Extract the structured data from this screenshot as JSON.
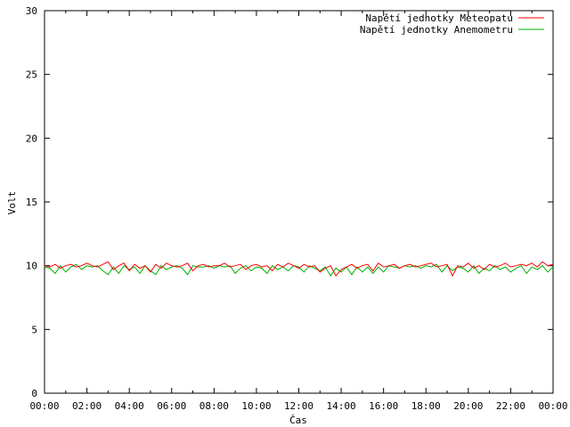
{
  "chart_data": {
    "type": "line",
    "xlabel": "Čas",
    "ylabel": "Volt",
    "ylim": [
      0,
      30
    ],
    "xlim_hours": [
      0,
      24
    ],
    "x_ticks": [
      "00:00",
      "02:00",
      "04:00",
      "06:00",
      "08:00",
      "10:00",
      "12:00",
      "14:00",
      "16:00",
      "18:00",
      "20:00",
      "22:00",
      "00:00"
    ],
    "y_ticks": [
      0,
      5,
      10,
      15,
      20,
      25,
      30
    ],
    "grid": false,
    "legend_position": "top-right",
    "series": [
      {
        "name": "Napětí jednotky Meteopatu",
        "color": "#ff0000",
        "x_hours": [
          0.0,
          0.25,
          0.5,
          0.75,
          1.0,
          1.25,
          1.5,
          1.75,
          2.0,
          2.25,
          2.5,
          2.75,
          3.0,
          3.25,
          3.5,
          3.75,
          4.0,
          4.25,
          4.5,
          4.75,
          5.0,
          5.25,
          5.5,
          5.75,
          6.0,
          6.25,
          6.5,
          6.75,
          7.0,
          7.25,
          7.5,
          7.75,
          8.0,
          8.25,
          8.5,
          8.75,
          9.0,
          9.25,
          9.5,
          9.75,
          10.0,
          10.25,
          10.5,
          10.75,
          11.0,
          11.25,
          11.5,
          11.75,
          12.0,
          12.25,
          12.5,
          12.75,
          13.0,
          13.25,
          13.5,
          13.75,
          14.0,
          14.25,
          14.5,
          14.75,
          15.0,
          15.25,
          15.5,
          15.75,
          16.0,
          16.25,
          16.5,
          16.75,
          17.0,
          17.25,
          17.5,
          17.75,
          18.0,
          18.25,
          18.5,
          18.75,
          19.0,
          19.25,
          19.5,
          19.75,
          20.0,
          20.25,
          20.5,
          20.75,
          21.0,
          21.25,
          21.5,
          21.75,
          22.0,
          22.25,
          22.5,
          22.75,
          23.0,
          23.25,
          23.5,
          23.75,
          24.0
        ],
        "values": [
          10.0,
          9.9,
          10.1,
          9.8,
          10.0,
          10.1,
          9.9,
          10.0,
          10.2,
          10.0,
          9.9,
          10.1,
          10.3,
          9.7,
          10.0,
          10.2,
          9.6,
          10.1,
          9.8,
          10.0,
          9.5,
          10.1,
          9.8,
          10.2,
          10.0,
          9.9,
          10.0,
          10.2,
          9.6,
          10.0,
          10.1,
          9.9,
          10.0,
          10.0,
          10.2,
          9.9,
          10.0,
          10.1,
          9.7,
          10.0,
          10.1,
          9.9,
          10.0,
          9.6,
          10.1,
          9.9,
          10.2,
          10.0,
          9.8,
          10.1,
          9.9,
          10.0,
          9.5,
          9.8,
          10.0,
          9.2,
          9.7,
          9.9,
          10.1,
          9.8,
          10.0,
          10.1,
          9.6,
          10.2,
          9.9,
          10.0,
          10.1,
          9.8,
          10.0,
          10.1,
          9.9,
          10.0,
          10.1,
          10.2,
          9.9,
          10.0,
          10.1,
          9.2,
          10.0,
          9.9,
          10.2,
          9.8,
          10.0,
          9.7,
          10.1,
          9.9,
          10.0,
          10.2,
          9.9,
          10.0,
          10.1,
          10.0,
          10.2,
          9.9,
          10.3,
          10.0,
          10.1
        ]
      },
      {
        "name": "Napětí jednotky Anemometru",
        "color": "#00b000",
        "x_hours": [
          0.0,
          0.25,
          0.5,
          0.75,
          1.0,
          1.25,
          1.5,
          1.75,
          2.0,
          2.25,
          2.5,
          2.75,
          3.0,
          3.25,
          3.5,
          3.75,
          4.0,
          4.25,
          4.5,
          4.75,
          5.0,
          5.25,
          5.5,
          5.75,
          6.0,
          6.25,
          6.5,
          6.75,
          7.0,
          7.25,
          7.5,
          7.75,
          8.0,
          8.25,
          8.5,
          8.75,
          9.0,
          9.25,
          9.5,
          9.75,
          10.0,
          10.25,
          10.5,
          10.75,
          11.0,
          11.25,
          11.5,
          11.75,
          12.0,
          12.25,
          12.5,
          12.75,
          13.0,
          13.25,
          13.5,
          13.75,
          14.0,
          14.25,
          14.5,
          14.75,
          15.0,
          15.25,
          15.5,
          15.75,
          16.0,
          16.25,
          16.5,
          16.75,
          17.0,
          17.25,
          17.5,
          17.75,
          18.0,
          18.25,
          18.5,
          18.75,
          19.0,
          19.25,
          19.5,
          19.75,
          20.0,
          20.25,
          20.5,
          20.75,
          21.0,
          21.25,
          21.5,
          21.75,
          22.0,
          22.25,
          22.5,
          22.75,
          23.0,
          23.25,
          23.5,
          23.75,
          24.0
        ],
        "values": [
          9.9,
          9.8,
          9.4,
          10.0,
          9.5,
          9.9,
          10.1,
          9.7,
          10.0,
          9.9,
          10.0,
          9.6,
          9.3,
          9.9,
          9.4,
          10.0,
          9.7,
          9.9,
          9.4,
          10.0,
          9.6,
          9.3,
          10.0,
          9.7,
          9.9,
          10.0,
          9.8,
          9.3,
          10.0,
          9.9,
          9.9,
          10.0,
          9.8,
          10.0,
          9.9,
          10.0,
          9.4,
          9.8,
          10.0,
          9.6,
          9.9,
          9.8,
          9.4,
          10.0,
          9.7,
          9.9,
          9.6,
          10.0,
          9.9,
          9.5,
          10.0,
          9.8,
          9.6,
          9.9,
          9.2,
          9.8,
          9.5,
          9.9,
          9.3,
          9.9,
          9.5,
          9.9,
          9.4,
          9.9,
          9.5,
          10.0,
          9.9,
          9.8,
          10.0,
          9.9,
          10.0,
          9.8,
          10.0,
          9.9,
          10.1,
          9.5,
          10.0,
          9.6,
          9.9,
          9.8,
          9.5,
          10.0,
          9.4,
          9.8,
          9.6,
          10.0,
          9.7,
          9.9,
          9.5,
          9.8,
          10.0,
          9.4,
          9.9,
          9.7,
          10.0,
          9.5,
          9.9
        ]
      }
    ]
  }
}
